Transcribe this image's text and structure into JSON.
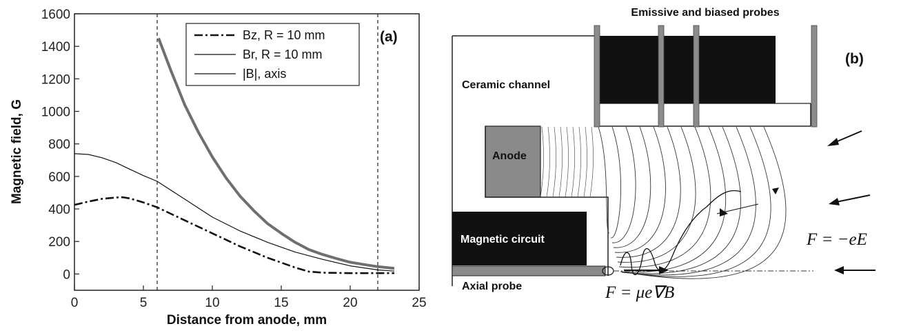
{
  "chart_data": {
    "type": "line",
    "panel_label": "(a)",
    "xlabel": "Distance from anode, mm",
    "ylabel": "Magnetic field, G",
    "xlim": [
      0,
      25
    ],
    "ylim": [
      -100,
      1600
    ],
    "x_ticks": [
      0,
      5,
      10,
      15,
      20,
      25
    ],
    "y_ticks": [
      0,
      200,
      400,
      600,
      800,
      1000,
      1200,
      1400,
      1600
    ],
    "grid": false,
    "legend_position": "top-right",
    "vertical_markers": [
      6,
      22
    ],
    "series": [
      {
        "name": "Bz, R = 10 mm",
        "style": "dash-dot",
        "x": [
          0,
          1,
          2,
          3,
          3.5,
          4,
          5,
          6,
          8,
          10,
          12,
          14,
          16,
          17,
          18,
          20,
          22,
          23.2
        ],
        "values": [
          425,
          445,
          462,
          470,
          472,
          465,
          440,
          410,
          330,
          250,
          170,
          100,
          40,
          15,
          8,
          5,
          5,
          5
        ]
      },
      {
        "name": "Br, R = 10 mm",
        "style": "solid-thin",
        "x": [
          0,
          1,
          2,
          3,
          4,
          5,
          6,
          8,
          10,
          12,
          14,
          16,
          18,
          20,
          22,
          23.2
        ],
        "values": [
          740,
          735,
          715,
          685,
          645,
          605,
          570,
          460,
          350,
          265,
          195,
          135,
          90,
          50,
          25,
          18
        ]
      },
      {
        "name": "|B|, axis",
        "style": "solid-thick",
        "x": [
          6.1,
          7,
          8,
          9,
          10,
          11,
          12,
          13,
          14,
          15,
          16,
          17,
          18,
          19,
          20,
          21,
          22,
          23.2
        ],
        "values": [
          1450,
          1250,
          1040,
          870,
          720,
          590,
          480,
          390,
          310,
          250,
          195,
          150,
          120,
          95,
          72,
          58,
          45,
          35
        ]
      }
    ]
  },
  "diagram": {
    "panel_label": "(b)",
    "labels": {
      "probes": "Emissive and biased probes",
      "channel": "Ceramic channel",
      "anode": "Anode",
      "magnetic_circuit": "Magnetic circuit",
      "axial_probe": "Axial probe",
      "force_electric": "F = −eE",
      "force_magnetic": "F = μe∇B"
    }
  },
  "colors": {
    "axis": "#222222",
    "dark_fill": "#111111",
    "anode_fill": "#8a8a8a",
    "probe_fill": "#8c8c8c",
    "thick_curve": "#6f6f6f"
  }
}
